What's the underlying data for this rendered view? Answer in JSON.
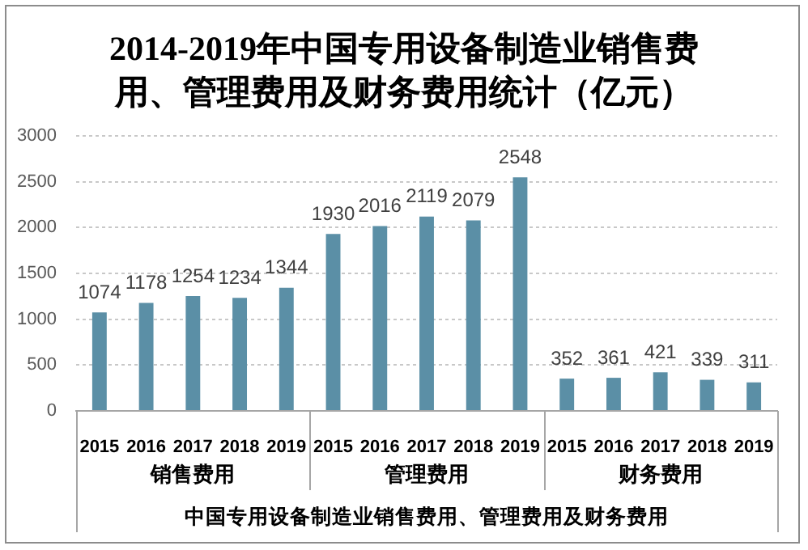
{
  "chart_data": {
    "type": "bar",
    "title": "2014-2019年中国专用设备制造业销售费用、管理费用及财务费用统计（亿元）",
    "xlabel": "中国专用设备制造业销售费用、管理费用及财务费用",
    "categories": [
      "2015",
      "2016",
      "2017",
      "2018",
      "2019",
      "2015",
      "2016",
      "2017",
      "2018",
      "2019",
      "2015",
      "2016",
      "2017",
      "2018",
      "2019"
    ],
    "series": [
      {
        "name": "销售费用",
        "color": "#5b8fa6",
        "values": [
          1074,
          1178,
          1254,
          1234,
          1344,
          null,
          null,
          null,
          null,
          null,
          null,
          null,
          null,
          null,
          null
        ]
      },
      {
        "name": "管理费用",
        "color": "#5b8fa6",
        "values": [
          null,
          null,
          null,
          null,
          null,
          1930,
          2016,
          2119,
          2079,
          2548,
          null,
          null,
          null,
          null,
          null
        ]
      },
      {
        "name": "财务费用",
        "color": "#5b8fa6",
        "values": [
          null,
          null,
          null,
          null,
          null,
          null,
          null,
          null,
          null,
          null,
          352,
          361,
          421,
          339,
          311
        ]
      }
    ],
    "ylim": [
      0,
      3000
    ],
    "yticks": [
      0,
      500,
      1000,
      1500,
      2000,
      2500,
      3000
    ],
    "grid": "y",
    "data_labels": true
  }
}
